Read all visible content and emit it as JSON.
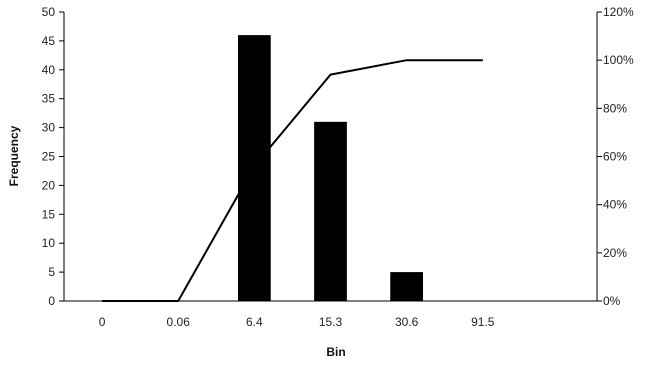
{
  "chart_data": {
    "type": "bar",
    "title": "",
    "xlabel": "Bin",
    "ylabel": "Frequency",
    "categories": [
      "0",
      "0.06",
      "6.4",
      "15.3",
      "30.6",
      "91.5"
    ],
    "series": [
      {
        "type": "bar",
        "values": [
          0,
          0,
          46,
          31,
          5,
          0
        ],
        "color": "#000000"
      },
      {
        "type": "line",
        "values": [
          0,
          0,
          56,
          94,
          100,
          100
        ],
        "axis": "right",
        "color": "#000000"
      }
    ],
    "ylim": [
      0,
      50
    ],
    "y_ticks": [
      0,
      5,
      10,
      15,
      20,
      25,
      30,
      35,
      40,
      45,
      50
    ],
    "y2lim": [
      0,
      120
    ],
    "y2_ticks": [
      0,
      20,
      40,
      60,
      80,
      100,
      120
    ],
    "y2_tick_labels": [
      "0%",
      "20%",
      "40%",
      "60%",
      "80%",
      "100%",
      "120%"
    ],
    "grid": false,
    "legend": "none"
  }
}
